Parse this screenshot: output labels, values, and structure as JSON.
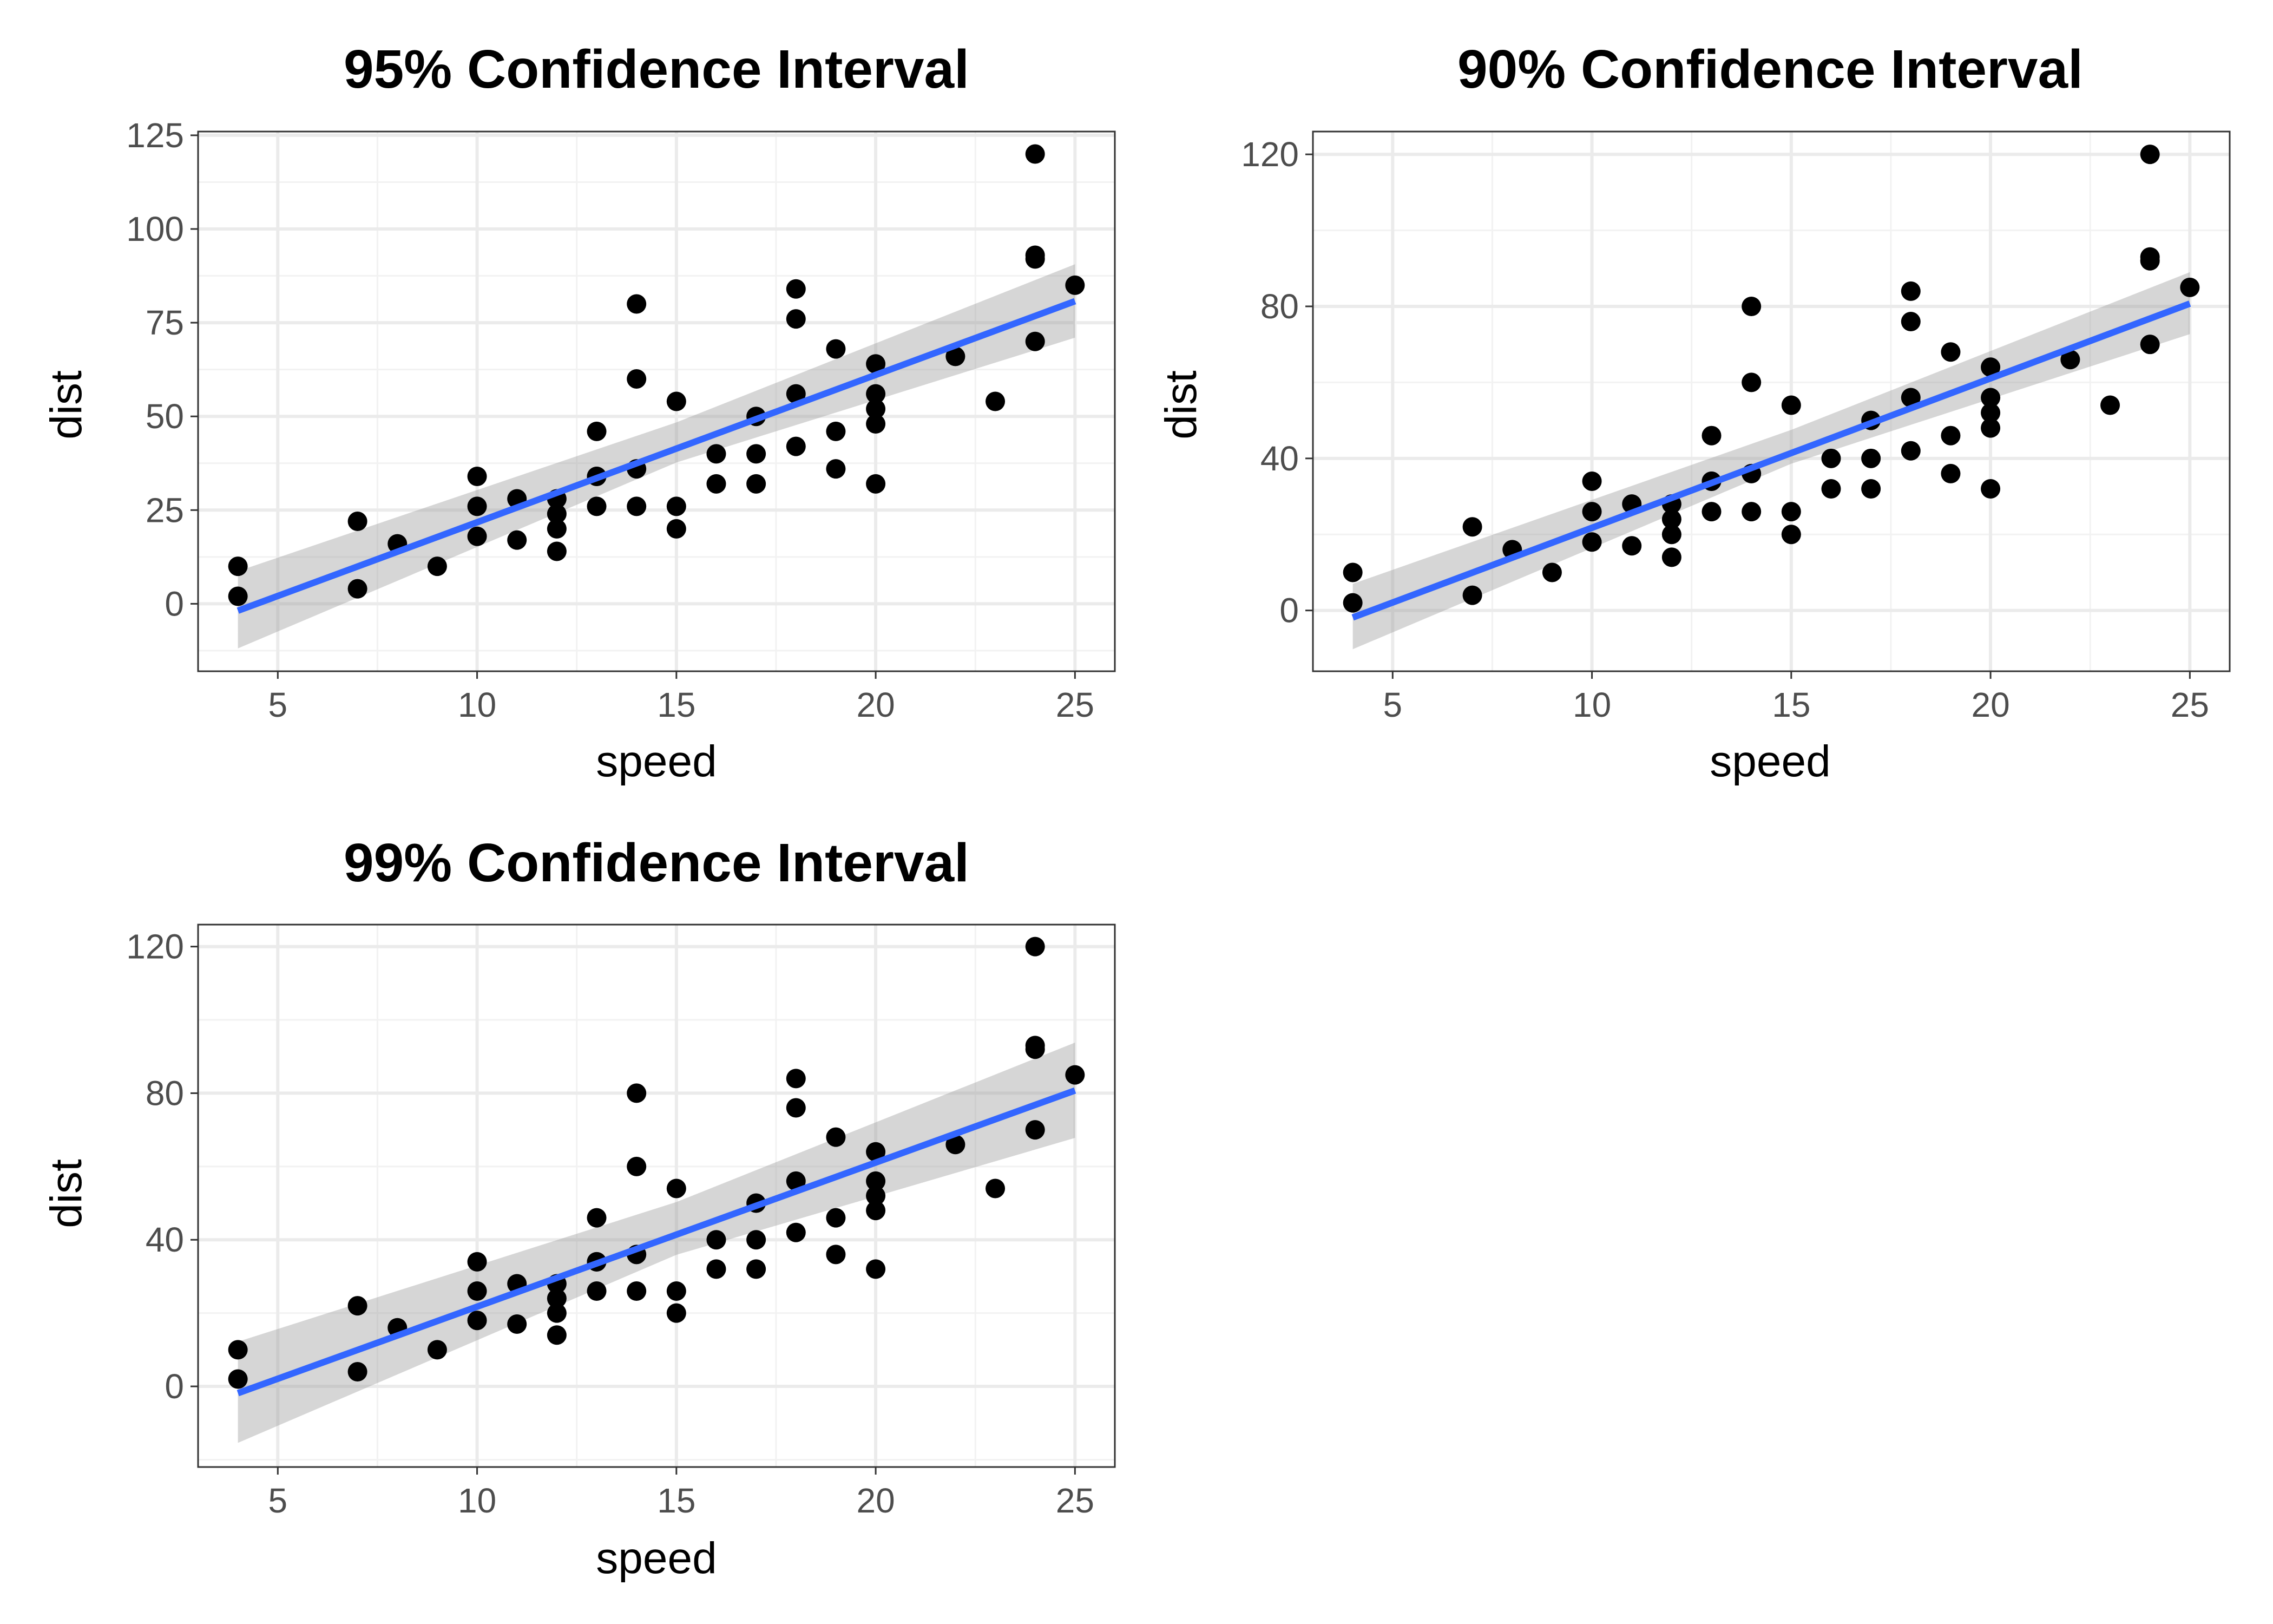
{
  "chart_data": [
    {
      "type": "scatter",
      "title": "95% Confidence Interval",
      "xlabel": "speed",
      "ylabel": "dist",
      "xlim": [
        3.0,
        26.0
      ],
      "ylim": [
        -18.0,
        126.0
      ],
      "xticks": [
        5,
        10,
        15,
        20,
        25
      ],
      "yticks": [
        0,
        25,
        50,
        75,
        100,
        125
      ],
      "grid": true,
      "points": {
        "x": [
          4,
          4,
          7,
          7,
          8,
          9,
          10,
          10,
          10,
          11,
          11,
          12,
          12,
          12,
          12,
          13,
          13,
          13,
          13,
          14,
          14,
          14,
          14,
          15,
          15,
          15,
          16,
          16,
          17,
          17,
          17,
          18,
          18,
          18,
          18,
          19,
          19,
          19,
          20,
          20,
          20,
          20,
          20,
          22,
          23,
          24,
          24,
          24,
          24,
          25
        ],
        "y": [
          2,
          10,
          4,
          22,
          16,
          10,
          18,
          26,
          34,
          17,
          28,
          14,
          20,
          24,
          28,
          26,
          34,
          34,
          46,
          26,
          36,
          60,
          80,
          20,
          26,
          54,
          32,
          40,
          32,
          40,
          50,
          42,
          56,
          76,
          84,
          36,
          46,
          68,
          32,
          48,
          52,
          56,
          64,
          66,
          54,
          70,
          92,
          93,
          120,
          85
        ]
      },
      "fit": {
        "method": "linear regression",
        "intercept": -17.5791,
        "slope": 3.9324,
        "band": [
          {
            "x": 4,
            "lower": -11.9,
            "upper": 8.7
          },
          {
            "x": 15,
            "lower": 37.7,
            "upper": 48.4
          },
          {
            "x": 25,
            "lower": 71.0,
            "upper": 90.6
          }
        ]
      }
    },
    {
      "type": "scatter",
      "title": "90% Confidence Interval",
      "xlabel": "speed",
      "ylabel": "dist",
      "xlim": [
        3.0,
        26.0
      ],
      "ylim": [
        -16.0,
        126.0
      ],
      "xticks": [
        5,
        10,
        15,
        20,
        25
      ],
      "yticks": [
        0,
        40,
        80,
        120
      ],
      "grid": true,
      "points": {
        "x": [
          4,
          4,
          7,
          7,
          8,
          9,
          10,
          10,
          10,
          11,
          11,
          12,
          12,
          12,
          12,
          13,
          13,
          13,
          13,
          14,
          14,
          14,
          14,
          15,
          15,
          15,
          16,
          16,
          17,
          17,
          17,
          18,
          18,
          18,
          18,
          19,
          19,
          19,
          20,
          20,
          20,
          20,
          20,
          22,
          23,
          24,
          24,
          24,
          24,
          25
        ],
        "y": [
          2,
          10,
          4,
          22,
          16,
          10,
          18,
          26,
          34,
          17,
          28,
          14,
          20,
          24,
          28,
          26,
          34,
          34,
          46,
          26,
          36,
          60,
          80,
          20,
          26,
          54,
          32,
          40,
          32,
          40,
          50,
          42,
          56,
          76,
          84,
          36,
          46,
          68,
          32,
          48,
          52,
          56,
          64,
          66,
          54,
          70,
          92,
          93,
          120,
          85
        ]
      },
      "fit": {
        "method": "linear regression",
        "intercept": -17.5791,
        "slope": 3.9324,
        "band": [
          {
            "x": 4,
            "lower": -10.2,
            "upper": 7.0
          },
          {
            "x": 15,
            "lower": 38.6,
            "upper": 47.5
          },
          {
            "x": 25,
            "lower": 72.7,
            "upper": 89.0
          }
        ]
      }
    },
    {
      "type": "scatter",
      "title": "99% Confidence Interval",
      "xlabel": "speed",
      "ylabel": "dist",
      "xlim": [
        3.0,
        26.0
      ],
      "ylim": [
        -22.0,
        126.0
      ],
      "xticks": [
        5,
        10,
        15,
        20,
        25
      ],
      "yticks": [
        0,
        40,
        80,
        120
      ],
      "grid": true,
      "points": {
        "x": [
          4,
          4,
          7,
          7,
          8,
          9,
          10,
          10,
          10,
          11,
          11,
          12,
          12,
          12,
          12,
          13,
          13,
          13,
          13,
          14,
          14,
          14,
          14,
          15,
          15,
          15,
          16,
          16,
          17,
          17,
          17,
          18,
          18,
          18,
          18,
          19,
          19,
          19,
          20,
          20,
          20,
          20,
          20,
          22,
          23,
          24,
          24,
          24,
          24,
          25
        ],
        "y": [
          2,
          10,
          4,
          22,
          16,
          10,
          18,
          26,
          34,
          17,
          28,
          14,
          20,
          24,
          28,
          26,
          34,
          34,
          46,
          26,
          36,
          60,
          80,
          20,
          26,
          54,
          32,
          40,
          32,
          40,
          50,
          42,
          56,
          76,
          84,
          36,
          46,
          68,
          32,
          48,
          52,
          56,
          64,
          66,
          54,
          70,
          92,
          93,
          120,
          85
        ]
      },
      "fit": {
        "method": "linear regression",
        "intercept": -17.5791,
        "slope": 3.9324,
        "band": [
          {
            "x": 4,
            "lower": -15.4,
            "upper": 12.2
          },
          {
            "x": 15,
            "lower": 35.9,
            "upper": 50.3
          },
          {
            "x": 25,
            "lower": 67.8,
            "upper": 93.8
          }
        ]
      }
    }
  ],
  "colors": {
    "panel_background": "#ffffff",
    "panel_border": "#333333",
    "grid_major": "#ebebeb",
    "grid_minor": "#f2f2f2",
    "point": "#000000",
    "fit_line": "#3366ff",
    "band": "#999999",
    "tick_label": "#4d4d4d"
  }
}
